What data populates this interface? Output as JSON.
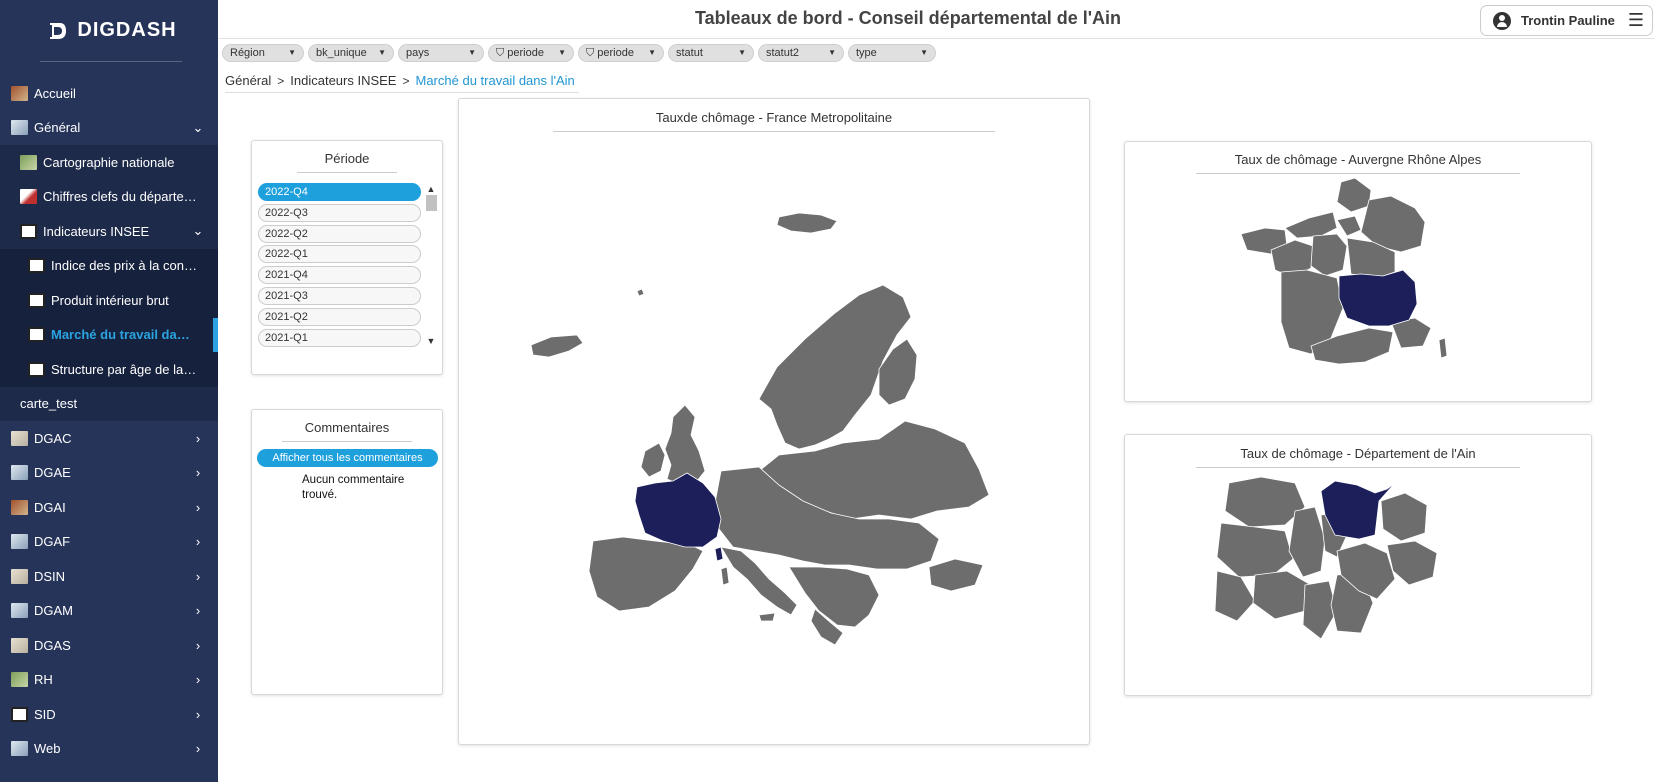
{
  "app": {
    "logo_text": "DIGDASH",
    "title": "Tableaux de bord - Conseil départemental de l'Ain"
  },
  "user": {
    "name": "Trontin Pauline",
    "menu_icon": "hamburger-menu-icon"
  },
  "sidebar": {
    "items": [
      {
        "label": "Accueil",
        "level": 0,
        "chevron": ""
      },
      {
        "label": "Général",
        "level": 0,
        "chevron": "⌄"
      },
      {
        "label": "Cartographie nationale",
        "level": 1,
        "chevron": ""
      },
      {
        "label": "Chiffres clefs du départe…",
        "level": 1,
        "chevron": ""
      },
      {
        "label": "Indicateurs INSEE",
        "level": 1,
        "chevron": "⌄"
      },
      {
        "label": "Indice des prix à la con…",
        "level": 2,
        "chevron": ""
      },
      {
        "label": "Produit intérieur brut",
        "level": 2,
        "chevron": ""
      },
      {
        "label": "Marché du travail da…",
        "level": 2,
        "chevron": "",
        "active": true
      },
      {
        "label": "Structure par âge de la…",
        "level": 2,
        "chevron": ""
      },
      {
        "label": "carte_test",
        "level": 1,
        "chevron": ""
      },
      {
        "label": "DGAC",
        "level": 0,
        "chevron": "›"
      },
      {
        "label": "DGAE",
        "level": 0,
        "chevron": "›"
      },
      {
        "label": "DGAI",
        "level": 0,
        "chevron": "›"
      },
      {
        "label": "DGAF",
        "level": 0,
        "chevron": "›"
      },
      {
        "label": "DSIN",
        "level": 0,
        "chevron": "›"
      },
      {
        "label": "DGAM",
        "level": 0,
        "chevron": "›"
      },
      {
        "label": "DGAS",
        "level": 0,
        "chevron": "›"
      },
      {
        "label": "RH",
        "level": 0,
        "chevron": "›"
      },
      {
        "label": "SID",
        "level": 0,
        "chevron": "›"
      },
      {
        "label": "Web",
        "level": 0,
        "chevron": "›"
      }
    ]
  },
  "filters": [
    {
      "label": "Région",
      "funnel": false,
      "width": 82
    },
    {
      "label": "bk_unique",
      "funnel": false,
      "width": 86
    },
    {
      "label": "pays",
      "funnel": false,
      "width": 86
    },
    {
      "label": "periode",
      "funnel": true,
      "width": 86
    },
    {
      "label": "periode",
      "funnel": true,
      "width": 86
    },
    {
      "label": "statut",
      "funnel": false,
      "width": 86
    },
    {
      "label": "statut2",
      "funnel": false,
      "width": 86
    },
    {
      "label": "type",
      "funnel": false,
      "width": 88
    }
  ],
  "breadcrumb": {
    "items": [
      "Général",
      "Indicateurs INSEE",
      "Marché du travail dans l'Ain"
    ],
    "separator": ">"
  },
  "periode": {
    "title": "Période",
    "options": [
      "2022-Q4",
      "2022-Q3",
      "2022-Q2",
      "2022-Q1",
      "2021-Q4",
      "2021-Q3",
      "2021-Q2",
      "2021-Q1"
    ],
    "selected": "2022-Q4"
  },
  "comments": {
    "title": "Commentaires",
    "button": "Afficher tous les commentaires",
    "empty": "Aucun commentaire trouvé."
  },
  "maps": {
    "europe_title": "Tauxde chômage - France Metropolitaine",
    "ara_title": "Taux de chômage - Auvergne Rhône Alpes",
    "ain_title": "Taux de chômage - Département de l'Ain",
    "base_color": "#6d6d6d",
    "highlight_color": "#1c1f5a"
  }
}
